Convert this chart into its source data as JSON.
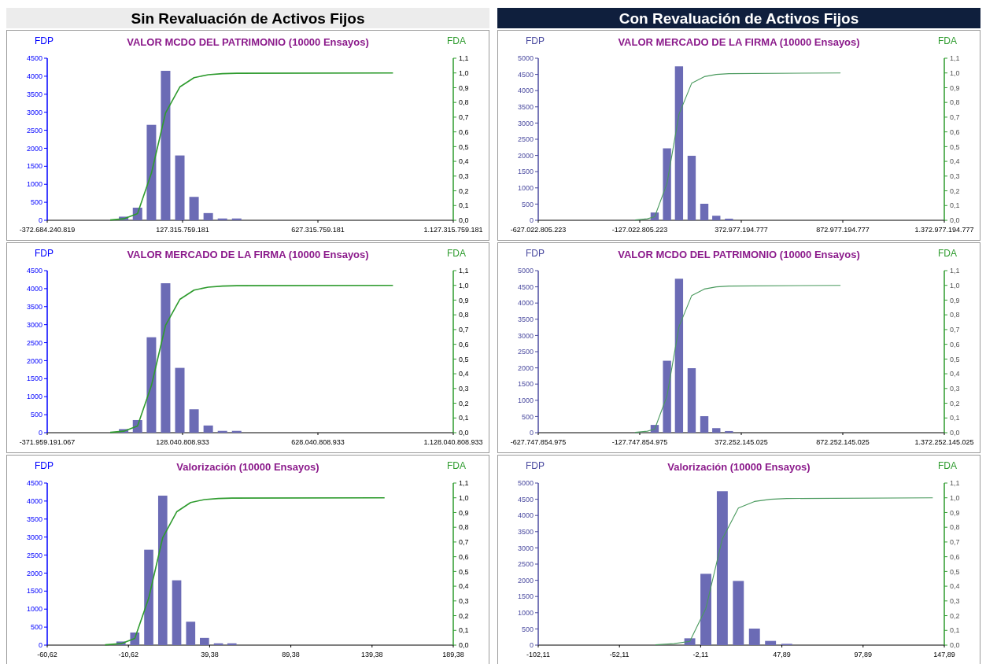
{
  "chart_data": [
    {
      "type": "bar",
      "title": "VALOR MCDO DEL PATRIMONIO (10000 Ensayos)",
      "ylabel": "FDP",
      "y2label": "FDA",
      "annotations": [
        "Sin Revaluación de Activos Fijos"
      ],
      "xlim": [
        -372684240819,
        1127315759181
      ],
      "xticks": [
        {
          "value": -372684240819,
          "label": "-372.684.240.819"
        },
        {
          "value": 127315759181,
          "label": "127.315.759.181"
        },
        {
          "value": 627315759181,
          "label": "627.315.759.181"
        },
        {
          "value": 1127315759181,
          "label": "1.127.315.759.181"
        }
      ],
      "ylim": [
        0,
        4500
      ],
      "yticks": [
        0,
        500,
        1000,
        1500,
        2000,
        2500,
        3000,
        3500,
        4000,
        4500
      ],
      "y2lim": [
        0,
        1.1
      ],
      "y2ticks": [
        {
          "value": 0,
          "label": "0,0"
        },
        {
          "value": 0.1,
          "label": "0,1"
        },
        {
          "value": 0.2,
          "label": "0,2"
        },
        {
          "value": 0.3,
          "label": "0,3"
        },
        {
          "value": 0.4,
          "label": "0,4"
        },
        {
          "value": 0.5,
          "label": "0,5"
        },
        {
          "value": 0.6,
          "label": "0,6"
        },
        {
          "value": 0.7,
          "label": "0,7"
        },
        {
          "value": 0.8,
          "label": "0,8"
        },
        {
          "value": 0.9,
          "label": "0,9"
        },
        {
          "value": 1,
          "label": "1,0"
        },
        {
          "value": 1.1,
          "label": "1,1"
        }
      ],
      "series": [
        {
          "color": "#6b6bb5",
          "x": [
            -90400000000,
            -39100000000,
            12300000000,
            64700000000,
            117200000000,
            169700000000,
            222200000000,
            274700000000,
            327200000000
          ],
          "values": [
            100,
            350,
            2650,
            4150,
            1800,
            650,
            200,
            50,
            50
          ]
        },
        {
          "type": "line",
          "axis": "y2",
          "color": "#2e9b2e",
          "x": [
            -140000000000,
            -90400000000,
            -39100000000,
            12300000000,
            64700000000,
            117200000000,
            169700000000,
            222200000000,
            274700000000,
            327200000000,
            904600000000
          ],
          "values": [
            0.002,
            0.01,
            0.045,
            0.32,
            0.73,
            0.905,
            0.968,
            0.988,
            0.995,
            0.998,
            1.0
          ]
        }
      ]
    },
    {
      "type": "bar",
      "title": "VALOR MERCADO DE LA FIRMA (10000 Ensayos)",
      "ylabel": "FDP",
      "y2label": "FDA",
      "annotations": [
        "Con Revaluación de Activos Fijos"
      ],
      "xlim": [
        -627022805223,
        1372977194777
      ],
      "xticks": [
        {
          "value": -627022805223,
          "label": "-627.022.805.223"
        },
        {
          "value": -127022805223,
          "label": "-127.022.805.223"
        },
        {
          "value": 372977194777,
          "label": "372.977.194.777"
        },
        {
          "value": 872977194777,
          "label": "872.977.194.777"
        },
        {
          "value": 1372977194777,
          "label": "1.372.977.194.777"
        }
      ],
      "ylim": [
        0,
        5000
      ],
      "yticks": [
        0,
        500,
        1000,
        1500,
        2000,
        2500,
        3000,
        3500,
        4000,
        4500,
        5000
      ],
      "y2lim": [
        0,
        1.1
      ],
      "y2ticks": [
        {
          "value": 0,
          "label": "0,0"
        },
        {
          "value": 0.1,
          "label": "0,1"
        },
        {
          "value": 0.2,
          "label": "0,2"
        },
        {
          "value": 0.3,
          "label": "0,3"
        },
        {
          "value": 0.4,
          "label": "0,4"
        },
        {
          "value": 0.5,
          "label": "0,5"
        },
        {
          "value": 0.6,
          "label": "0,6"
        },
        {
          "value": 0.7,
          "label": "0,7"
        },
        {
          "value": 0.8,
          "label": "0,8"
        },
        {
          "value": 0.9,
          "label": "0,9"
        },
        {
          "value": 1,
          "label": "1,0"
        },
        {
          "value": 1.1,
          "label": "1,1"
        }
      ],
      "series": [
        {
          "color": "#6b6bb5",
          "x": [
            -53500000000,
            7200000000,
            66300000000,
            128600000000,
            190900000000,
            250000000000,
            312300000000
          ],
          "values": [
            240,
            2220,
            4750,
            1990,
            510,
            140,
            50
          ]
        },
        {
          "type": "line",
          "axis": "y2",
          "color": "#4a9a5e",
          "x": [
            -150000000000,
            -90000000000,
            -53500000000,
            7200000000,
            66300000000,
            128600000000,
            190900000000,
            250000000000,
            312300000000,
            861800000000
          ],
          "values": [
            0.002,
            0.01,
            0.024,
            0.25,
            0.72,
            0.93,
            0.975,
            0.99,
            0.995,
            1.0
          ]
        }
      ]
    },
    {
      "type": "bar",
      "title": "VALOR MERCADO DE LA FIRMA (10000 Ensayos)",
      "ylabel": "FDP",
      "y2label": "FDA",
      "xlim": [
        -371959191067,
        1128040808933
      ],
      "xticks": [
        {
          "value": -371959191067,
          "label": "-371.959.191.067"
        },
        {
          "value": 128040808933,
          "label": "128.040.808.933"
        },
        {
          "value": 628040808933,
          "label": "628.040.808.933"
        },
        {
          "value": 1128040808933,
          "label": "1.128.040.808.933"
        }
      ],
      "ylim": [
        0,
        4500
      ],
      "yticks": [
        0,
        500,
        1000,
        1500,
        2000,
        2500,
        3000,
        3500,
        4000,
        4500
      ],
      "y2lim": [
        0,
        1.1
      ],
      "y2ticks": [
        {
          "value": 0,
          "label": "0,0"
        },
        {
          "value": 0.1,
          "label": "0,1"
        },
        {
          "value": 0.2,
          "label": "0,2"
        },
        {
          "value": 0.3,
          "label": "0,3"
        },
        {
          "value": 0.4,
          "label": "0,4"
        },
        {
          "value": 0.5,
          "label": "0,5"
        },
        {
          "value": 0.6,
          "label": "0,6"
        },
        {
          "value": 0.7,
          "label": "0,7"
        },
        {
          "value": 0.8,
          "label": "0,8"
        },
        {
          "value": 0.9,
          "label": "0,9"
        },
        {
          "value": 1,
          "label": "1,0"
        },
        {
          "value": 1.1,
          "label": "1,1"
        }
      ],
      "series": [
        {
          "color": "#6b6bb5",
          "x": [
            -89700000000,
            -38400000000,
            13000000000,
            65400000000,
            117900000000,
            170400000000,
            222900000000,
            275400000000,
            327900000000
          ],
          "values": [
            100,
            350,
            2650,
            4150,
            1800,
            650,
            200,
            50,
            50
          ]
        },
        {
          "type": "line",
          "axis": "y2",
          "color": "#2e9b2e",
          "x": [
            -139300000000,
            -89700000000,
            -38400000000,
            13000000000,
            65400000000,
            117900000000,
            170400000000,
            222900000000,
            275400000000,
            327900000000,
            905300000000
          ],
          "values": [
            0.002,
            0.01,
            0.045,
            0.32,
            0.73,
            0.905,
            0.968,
            0.988,
            0.995,
            0.998,
            1.0
          ]
        }
      ]
    },
    {
      "type": "bar",
      "title": "VALOR MCDO DEL PATRIMONIO (10000 Ensayos)",
      "ylabel": "FDP",
      "y2label": "FDA",
      "xlim": [
        -627747854975,
        1372252145025
      ],
      "xticks": [
        {
          "value": -627747854975,
          "label": "-627.747.854.975"
        },
        {
          "value": -127747854975,
          "label": "-127.747.854.975"
        },
        {
          "value": 372252145025,
          "label": "372.252.145.025"
        },
        {
          "value": 872252145025,
          "label": "872.252.145.025"
        },
        {
          "value": 1372252145025,
          "label": "1.372.252.145.025"
        }
      ],
      "ylim": [
        0,
        5000
      ],
      "yticks": [
        0,
        500,
        1000,
        1500,
        2000,
        2500,
        3000,
        3500,
        4000,
        4500,
        5000
      ],
      "y2lim": [
        0,
        1.1
      ],
      "y2ticks": [
        {
          "value": 0,
          "label": "0,0"
        },
        {
          "value": 0.1,
          "label": "0,1"
        },
        {
          "value": 0.2,
          "label": "0,2"
        },
        {
          "value": 0.3,
          "label": "0,3"
        },
        {
          "value": 0.4,
          "label": "0,4"
        },
        {
          "value": 0.5,
          "label": "0,5"
        },
        {
          "value": 0.6,
          "label": "0,6"
        },
        {
          "value": 0.7,
          "label": "0,7"
        },
        {
          "value": 0.8,
          "label": "0,8"
        },
        {
          "value": 0.9,
          "label": "0,9"
        },
        {
          "value": 1,
          "label": "1,0"
        },
        {
          "value": 1.1,
          "label": "1,1"
        }
      ],
      "series": [
        {
          "color": "#6b6bb5",
          "x": [
            -54200000000,
            6500000000,
            65600000000,
            127900000000,
            190200000000,
            249300000000,
            311600000000
          ],
          "values": [
            240,
            2220,
            4750,
            1990,
            510,
            140,
            50
          ]
        },
        {
          "type": "line",
          "axis": "y2",
          "color": "#4a9a5e",
          "x": [
            -150700000000,
            -90700000000,
            -54200000000,
            6500000000,
            65600000000,
            127900000000,
            190200000000,
            249300000000,
            311600000000,
            861100000000
          ],
          "values": [
            0.002,
            0.01,
            0.024,
            0.25,
            0.72,
            0.93,
            0.975,
            0.99,
            0.995,
            1.0
          ]
        }
      ]
    },
    {
      "type": "bar",
      "title": "Valorización (10000 Ensayos)",
      "ylabel": "FDP",
      "y2label": "FDA",
      "xlim": [
        -60.62,
        189.38
      ],
      "xticks": [
        {
          "value": -60.62,
          "label": "-60,62"
        },
        {
          "value": -10.62,
          "label": "-10,62"
        },
        {
          "value": 39.38,
          "label": "39,38"
        },
        {
          "value": 89.38,
          "label": "89,38"
        },
        {
          "value": 139.38,
          "label": "139,38"
        },
        {
          "value": 189.38,
          "label": "189,38"
        }
      ],
      "ylim": [
        0,
        4500
      ],
      "yticks": [
        0,
        500,
        1000,
        1500,
        2000,
        2500,
        3000,
        3500,
        4000,
        4500
      ],
      "y2lim": [
        0,
        1.1
      ],
      "y2ticks": [
        {
          "value": 0,
          "label": "0,0"
        },
        {
          "value": 0.1,
          "label": "0,1"
        },
        {
          "value": 0.2,
          "label": "0,2"
        },
        {
          "value": 0.3,
          "label": "0,3"
        },
        {
          "value": 0.4,
          "label": "0,4"
        },
        {
          "value": 0.5,
          "label": "0,5"
        },
        {
          "value": 0.6,
          "label": "0,6"
        },
        {
          "value": 0.7,
          "label": "0,7"
        },
        {
          "value": 0.8,
          "label": "0,8"
        },
        {
          "value": 0.9,
          "label": "0,9"
        },
        {
          "value": 1,
          "label": "1,0"
        },
        {
          "value": 1.1,
          "label": "1,1"
        }
      ],
      "series": [
        {
          "color": "#6b6bb5",
          "x": [
            -15.2,
            -6.7,
            1.9,
            10.5,
            19.1,
            27.7,
            36.2,
            44.8,
            53.1
          ],
          "values": [
            100,
            350,
            2650,
            4150,
            1800,
            650,
            200,
            50,
            50
          ]
        },
        {
          "type": "line",
          "axis": "y2",
          "color": "#2e9b2e",
          "x": [
            -25,
            -15.2,
            -6.7,
            1.9,
            10.5,
            19.1,
            27.7,
            36.2,
            44.8,
            53.1,
            147.1
          ],
          "values": [
            0.002,
            0.01,
            0.045,
            0.32,
            0.73,
            0.905,
            0.968,
            0.988,
            0.995,
            0.998,
            1.0
          ]
        }
      ]
    },
    {
      "type": "bar",
      "title": "Valorización (10000 Ensayos)",
      "ylabel": "FDP",
      "y2label": "FDA",
      "xlim": [
        -102.11,
        147.89
      ],
      "xticks": [
        {
          "value": -102.11,
          "label": "-102,11"
        },
        {
          "value": -52.11,
          "label": "-52,11"
        },
        {
          "value": -2.11,
          "label": "-2,11"
        },
        {
          "value": 47.89,
          "label": "47,89"
        },
        {
          "value": 97.89,
          "label": "97,89"
        },
        {
          "value": 147.89,
          "label": "147,89"
        }
      ],
      "ylim": [
        0,
        5000
      ],
      "yticks": [
        0,
        500,
        1000,
        1500,
        2000,
        2500,
        3000,
        3500,
        4000,
        4500,
        5000
      ],
      "y2lim": [
        0,
        1.1
      ],
      "y2ticks": [
        {
          "value": 0,
          "label": "0,0"
        },
        {
          "value": 0.1,
          "label": "0,1"
        },
        {
          "value": 0.2,
          "label": "0,2"
        },
        {
          "value": 0.3,
          "label": "0,3"
        },
        {
          "value": 0.4,
          "label": "0,4"
        },
        {
          "value": 0.5,
          "label": "0,5"
        },
        {
          "value": 0.6,
          "label": "0,6"
        },
        {
          "value": 0.7,
          "label": "0,7"
        },
        {
          "value": 0.8,
          "label": "0,8"
        },
        {
          "value": 0.9,
          "label": "0,9"
        },
        {
          "value": 1,
          "label": "1,0"
        },
        {
          "value": 1.1,
          "label": "1,1"
        }
      ],
      "series": [
        {
          "color": "#6b6bb5",
          "x": [
            -8.8,
            1.1,
            11.2,
            21.1,
            31,
            40.9,
            50.9
          ],
          "values": [
            210,
            2200,
            4750,
            1980,
            510,
            130,
            40
          ]
        },
        {
          "type": "line",
          "axis": "y2",
          "color": "#4a9a5e",
          "x": [
            -30,
            -18.5,
            -8.8,
            1.1,
            11.2,
            21.1,
            31,
            40.9,
            50.9,
            140.8
          ],
          "values": [
            0.002,
            0.01,
            0.025,
            0.25,
            0.72,
            0.93,
            0.975,
            0.99,
            0.995,
            1.0
          ]
        }
      ]
    }
  ]
}
